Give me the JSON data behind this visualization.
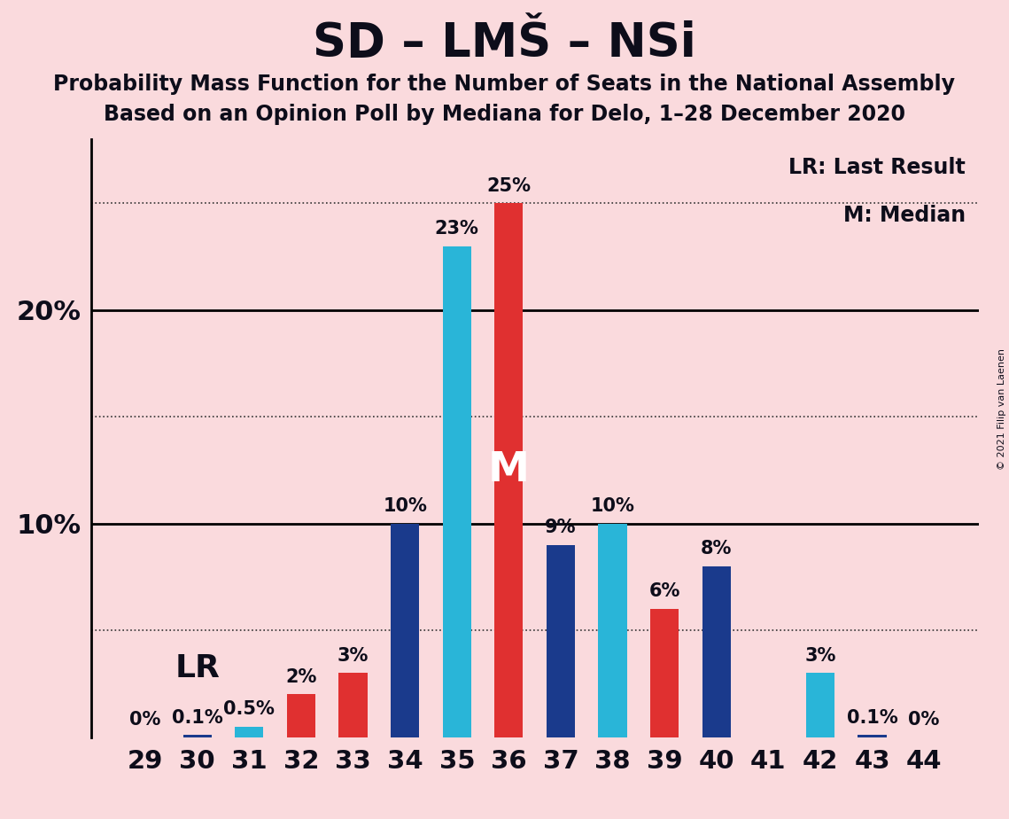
{
  "title": "SD – LMŠ – NSi",
  "subtitle1": "Probability Mass Function for the Number of Seats in the National Assembly",
  "subtitle2": "Based on an Opinion Poll by Mediana for Delo, 1–28 December 2020",
  "copyright": "© 2021 Filip van Laenen",
  "seats": [
    29,
    30,
    31,
    32,
    33,
    34,
    35,
    36,
    37,
    38,
    39,
    40,
    41,
    42,
    43,
    44
  ],
  "values": [
    0.0,
    0.001,
    0.005,
    0.02,
    0.03,
    0.1,
    0.23,
    0.25,
    0.09,
    0.1,
    0.06,
    0.08,
    0.0,
    0.03,
    0.001,
    0.0
  ],
  "labels": [
    "0%",
    "0.1%",
    "0.5%",
    "2%",
    "3%",
    "10%",
    "23%",
    "25%",
    "9%",
    "10%",
    "6%",
    "8%",
    "",
    "3%",
    "0.1%",
    "0%"
  ],
  "colors": [
    "#e03030",
    "#1a3a8c",
    "#29b5d8",
    "#e03030",
    "#e03030",
    "#1a3a8c",
    "#29b5d8",
    "#e03030",
    "#1a3a8c",
    "#29b5d8",
    "#e03030",
    "#1a3a8c",
    "#29b5d8",
    "#29b5d8",
    "#1a3a8c",
    "#e03030"
  ],
  "background_color": "#fadadd",
  "median_seat": 36,
  "lr_seat": 30,
  "ylim_max": 0.28,
  "dotted_line_vals": [
    0.05,
    0.15,
    0.25
  ],
  "solid_line_vals": [
    0.1,
    0.2
  ]
}
